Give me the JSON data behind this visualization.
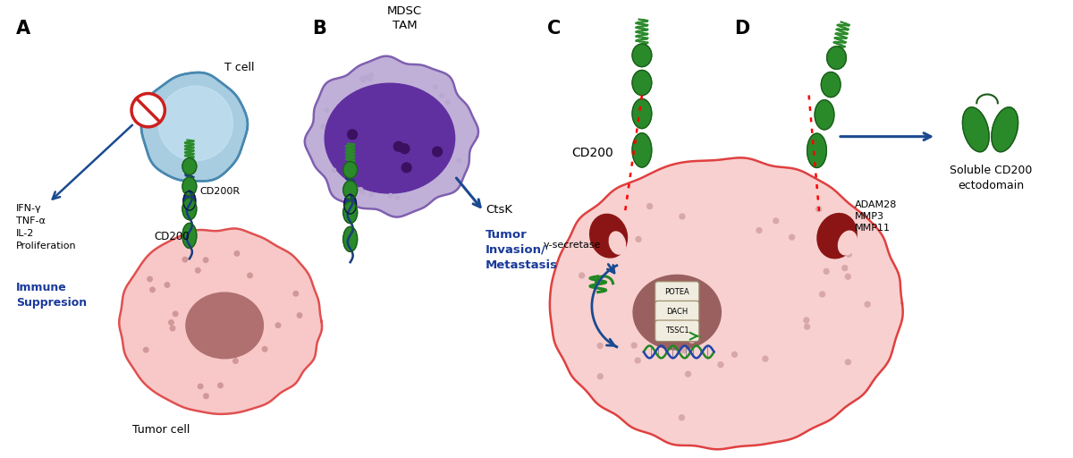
{
  "bg_color": "#ffffff",
  "colors": {
    "tcell_outer": "#a8cce0",
    "tcell_inner": "#c8e4f4",
    "tumor_cell": "#f8c8c8",
    "tumor_border": "#e05050",
    "tumor_nucleus": "#b07070",
    "mdsc_outer": "#c0b0d8",
    "mdsc_inner": "#6030a0",
    "mdsc_dots": "#3a1060",
    "cd200_green": "#2a8a2a",
    "cd200_dark": "#1a5a1a",
    "cd200r_blue": "#1a3a80",
    "arrow_blue": "#1a4a90",
    "immune_blue": "#1a3a9a",
    "red_circle": "#cc2020",
    "secretase_red": "#8b1515",
    "secretase_light": "#f5d0d0",
    "dna_green": "#228822",
    "dna_blue": "#2244aa",
    "cell_pink": "#f8d0d0",
    "cell_border": "#e04040",
    "nucleus_brown": "#9a6060",
    "dot_color": "#d09898",
    "mdsc_dot_outer": "#b8a8d0"
  },
  "text": {
    "A_label": "A",
    "B_label": "B",
    "C_label": "C",
    "D_label": "D",
    "tcell": "T cell",
    "mdsc_tam": "MDSC\nTAM",
    "tumor_cell": "Tumor cell",
    "cd200r": "CD200R",
    "cd200": "CD200",
    "ifn": "IFN-γ\nTNF-α\nIL-2\nProliferation",
    "immune_sup": "Immune\nSuppresion",
    "ctsk": "CtsK",
    "tumor_inv": "Tumor\nInvasion/\nMetastasis",
    "gamma_sec": "γ-secretase",
    "adam28": "ADAM28\nMMP3\nMMP11",
    "potea": "POTEA",
    "dach": "DACH",
    "tssc1": "TSSC1",
    "soluble_cd200": "Soluble CD200\nectodomain"
  }
}
